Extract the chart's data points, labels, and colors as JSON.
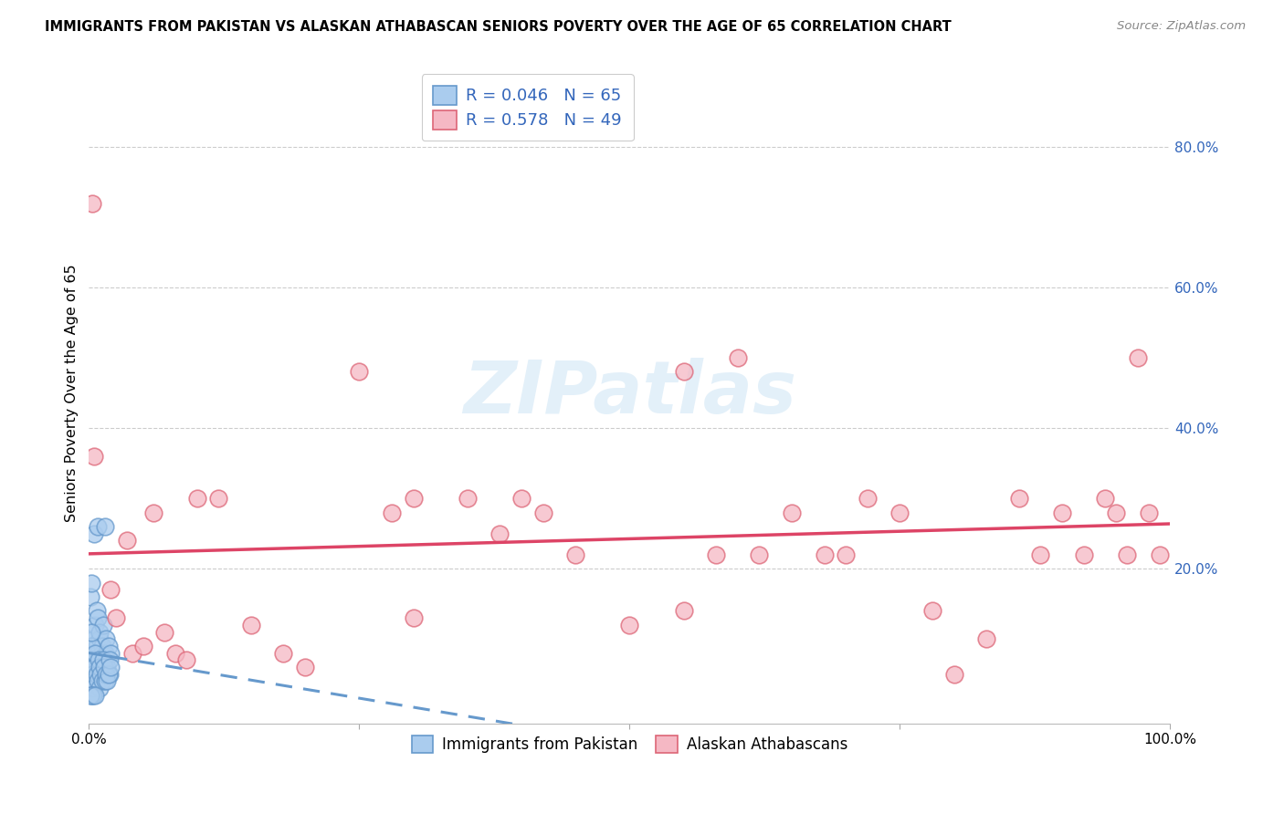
{
  "title": "IMMIGRANTS FROM PAKISTAN VS ALASKAN ATHABASCAN SENIORS POVERTY OVER THE AGE OF 65 CORRELATION CHART",
  "source": "Source: ZipAtlas.com",
  "ylabel": "Seniors Poverty Over the Age of 65",
  "xlim": [
    0,
    1.0
  ],
  "ylim": [
    -0.02,
    0.92
  ],
  "xtick_positions": [
    0.0,
    0.25,
    0.5,
    0.75,
    1.0
  ],
  "xticklabels": [
    "0.0%",
    "",
    "",
    "",
    "100.0%"
  ],
  "ytick_right_pos": [
    0.2,
    0.4,
    0.6,
    0.8
  ],
  "ytick_right_labels": [
    "20.0%",
    "40.0%",
    "60.0%",
    "80.0%"
  ],
  "blue_R": "0.046",
  "blue_N": "65",
  "pink_R": "0.578",
  "pink_N": "49",
  "blue_fill_color": "#aaccee",
  "pink_fill_color": "#f5b8c4",
  "blue_edge_color": "#6699cc",
  "pink_edge_color": "#dd6677",
  "blue_line_color": "#6699cc",
  "pink_line_color": "#dd4466",
  "legend_text_color": "#3366bb",
  "watermark": "ZIPatlas",
  "grid_color": "#cccccc",
  "blue_points": [
    [
      0.001,
      0.16
    ],
    [
      0.002,
      0.18
    ],
    [
      0.003,
      0.05
    ],
    [
      0.004,
      0.08
    ],
    [
      0.005,
      0.1
    ],
    [
      0.005,
      0.06
    ],
    [
      0.006,
      0.07
    ],
    [
      0.006,
      0.12
    ],
    [
      0.007,
      0.09
    ],
    [
      0.007,
      0.14
    ],
    [
      0.008,
      0.13
    ],
    [
      0.008,
      0.08
    ],
    [
      0.009,
      0.05
    ],
    [
      0.009,
      0.04
    ],
    [
      0.01,
      0.1
    ],
    [
      0.01,
      0.11
    ],
    [
      0.011,
      0.07
    ],
    [
      0.011,
      0.06
    ],
    [
      0.012,
      0.09
    ],
    [
      0.012,
      0.08
    ],
    [
      0.013,
      0.12
    ],
    [
      0.013,
      0.07
    ],
    [
      0.014,
      0.06
    ],
    [
      0.014,
      0.05
    ],
    [
      0.015,
      0.08
    ],
    [
      0.015,
      0.08
    ],
    [
      0.016,
      0.1
    ],
    [
      0.016,
      0.07
    ],
    [
      0.017,
      0.06
    ],
    [
      0.018,
      0.09
    ],
    [
      0.019,
      0.05
    ],
    [
      0.02,
      0.08
    ],
    [
      0.001,
      0.04
    ],
    [
      0.001,
      0.06
    ],
    [
      0.002,
      0.09
    ],
    [
      0.002,
      0.11
    ],
    [
      0.003,
      0.07
    ],
    [
      0.003,
      0.05
    ],
    [
      0.004,
      0.04
    ],
    [
      0.004,
      0.03
    ],
    [
      0.005,
      0.06
    ],
    [
      0.006,
      0.08
    ],
    [
      0.007,
      0.05
    ],
    [
      0.008,
      0.04
    ],
    [
      0.009,
      0.07
    ],
    [
      0.01,
      0.06
    ],
    [
      0.01,
      0.03
    ],
    [
      0.011,
      0.05
    ],
    [
      0.012,
      0.04
    ],
    [
      0.013,
      0.07
    ],
    [
      0.014,
      0.06
    ],
    [
      0.015,
      0.04
    ],
    [
      0.016,
      0.05
    ],
    [
      0.017,
      0.04
    ],
    [
      0.018,
      0.05
    ],
    [
      0.019,
      0.07
    ],
    [
      0.02,
      0.06
    ],
    [
      0.005,
      0.25
    ],
    [
      0.008,
      0.26
    ],
    [
      0.015,
      0.26
    ],
    [
      0.002,
      0.02
    ],
    [
      0.003,
      0.02
    ],
    [
      0.004,
      0.02
    ],
    [
      0.001,
      0.02
    ],
    [
      0.006,
      0.02
    ]
  ],
  "pink_points": [
    [
      0.003,
      0.72
    ],
    [
      0.005,
      0.36
    ],
    [
      0.02,
      0.17
    ],
    [
      0.025,
      0.13
    ],
    [
      0.035,
      0.24
    ],
    [
      0.04,
      0.08
    ],
    [
      0.05,
      0.09
    ],
    [
      0.06,
      0.28
    ],
    [
      0.07,
      0.11
    ],
    [
      0.08,
      0.08
    ],
    [
      0.09,
      0.07
    ],
    [
      0.1,
      0.3
    ],
    [
      0.12,
      0.3
    ],
    [
      0.15,
      0.12
    ],
    [
      0.18,
      0.08
    ],
    [
      0.2,
      0.06
    ],
    [
      0.25,
      0.48
    ],
    [
      0.28,
      0.28
    ],
    [
      0.3,
      0.3
    ],
    [
      0.35,
      0.3
    ],
    [
      0.38,
      0.25
    ],
    [
      0.4,
      0.3
    ],
    [
      0.42,
      0.28
    ],
    [
      0.45,
      0.22
    ],
    [
      0.5,
      0.12
    ],
    [
      0.55,
      0.14
    ],
    [
      0.58,
      0.22
    ],
    [
      0.62,
      0.22
    ],
    [
      0.65,
      0.28
    ],
    [
      0.68,
      0.22
    ],
    [
      0.7,
      0.22
    ],
    [
      0.72,
      0.3
    ],
    [
      0.75,
      0.28
    ],
    [
      0.78,
      0.14
    ],
    [
      0.8,
      0.05
    ],
    [
      0.83,
      0.1
    ],
    [
      0.86,
      0.3
    ],
    [
      0.88,
      0.22
    ],
    [
      0.9,
      0.28
    ],
    [
      0.92,
      0.22
    ],
    [
      0.94,
      0.3
    ],
    [
      0.95,
      0.28
    ],
    [
      0.96,
      0.22
    ],
    [
      0.97,
      0.5
    ],
    [
      0.98,
      0.28
    ],
    [
      0.99,
      0.22
    ],
    [
      0.6,
      0.5
    ],
    [
      0.55,
      0.48
    ],
    [
      0.3,
      0.13
    ]
  ],
  "blue_line_x_end": 0.06,
  "blue_line_intercept": 0.1,
  "blue_line_slope": 0.18,
  "pink_line_intercept": 0.1,
  "pink_line_slope": 0.26
}
